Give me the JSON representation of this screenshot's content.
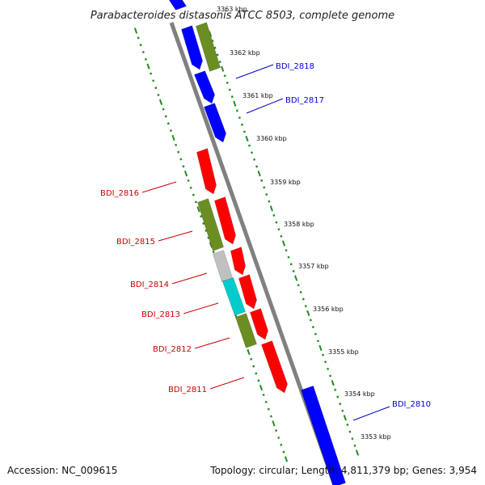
{
  "title": "Parabacteroides distasonis ATCC 8503, complete genome",
  "footer": {
    "accession": "Accession: NC_009615",
    "topology": "Topology: circular; Length: 4,811,379 bp; Genes: 3,954"
  },
  "colors": {
    "plus_strand": "#0000ff",
    "minus_strand": "#ff0000",
    "olive": "#6b8e23",
    "grey": "#c0c0c0",
    "cyan": "#00cccc",
    "backbone": "#808080",
    "ticks": "#228b22",
    "leader_plus": "#0000cc",
    "leader_minus": "#cc0000"
  },
  "scale_labels": [
    "3363 kbp",
    "3362 kbp",
    "3361 kbp",
    "3360 kbp",
    "3359 kbp",
    "3358 kbp",
    "3357 kbp",
    "3356 kbp",
    "3355 kbp",
    "3354 kbp",
    "3353 kbp"
  ],
  "gene_labels": {
    "plus": [
      "BDI_2818",
      "BDI_2817",
      "BDI_2810"
    ],
    "minus": [
      "BDI_2816",
      "BDI_2815",
      "BDI_2814",
      "BDI_2813",
      "BDI_2812",
      "BDI_2811"
    ]
  }
}
